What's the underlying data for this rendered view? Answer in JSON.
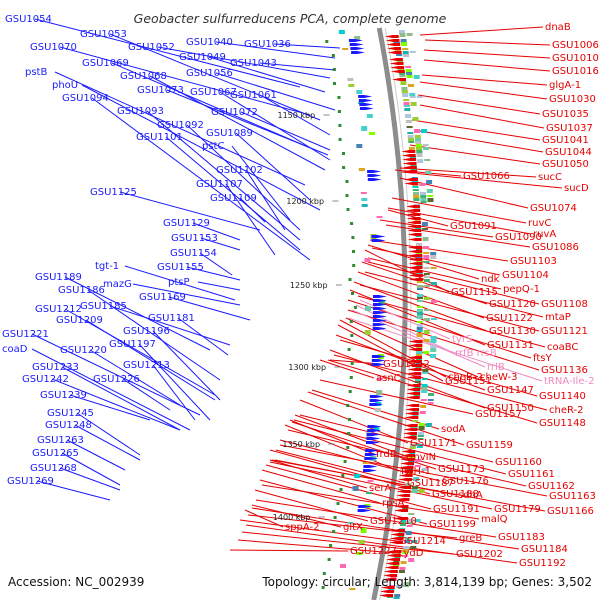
{
  "title": "Geobacter sulfurreducens PCA, complete genome",
  "footer": {
    "accession": "Accession: NC_002939",
    "topology": "Topology: circular; Length: 3,814,139 bp; Genes: 3,502"
  },
  "colors": {
    "forward": "#1a1aff",
    "reverse": "#e60000",
    "rna": "#f08ac0",
    "backbone": "#8c8c8c"
  },
  "scale_labels": [
    "1150 kbp",
    "1200 kbp",
    "1250 kbp",
    "1300 kbp",
    "1350 kbp",
    "1400 kbp"
  ],
  "left_labels": [
    "GSU1054",
    "GSU1053",
    "GSU1052",
    "GSU1040",
    "GSU1036",
    "GSU1070",
    "GSU1049",
    "GSU1043",
    "pstB",
    "GSU1069",
    "GSU1056",
    "phoU",
    "GSU1068",
    "GSU1067",
    "GSU1073",
    "GSU1061",
    "GSU1094",
    "GSU1072",
    "GSU1093",
    "GSU1092",
    "GSU1089",
    "GSU1101",
    "pstC",
    "GSU1102",
    "GSU1107",
    "GSU1125",
    "GSU1109",
    "GSU1129",
    "GSU1153",
    "GSU1154",
    "tgt-1",
    "GSU1155",
    "mazG",
    "GSU1189",
    "ptsP",
    "GSU1186",
    "GSU1169",
    "GSU1185",
    "GSU1212",
    "GSU1181",
    "GSU1209",
    "GSU1196",
    "GSU1221",
    "GSU1197",
    "coaD",
    "GSU1220",
    "GSU1233",
    "GSU1213",
    "GSU1242",
    "GSU1226",
    "GSU1239",
    "GSU1245",
    "GSU1248",
    "GSU1263",
    "GSU1265",
    "GSU1268",
    "GSU1269"
  ],
  "right_labels": [
    "dnaB",
    "GSU1006",
    "GSU1010",
    "GSU1016",
    "glgA-1",
    "GSU1030",
    "GSU1035",
    "GSU1037",
    "GSU1041",
    "GSU1044",
    "GSU1050",
    "GSU1066",
    "sucC",
    "sucD",
    "GSU1074",
    "GSU1091",
    "ruvC",
    "ruvA",
    "GSU1090",
    "GSU1086",
    "GSU1103",
    "ndk",
    "GSU1104",
    "GSU1115",
    "pepQ-1",
    "GSU1120",
    "GSU1108",
    "GSU1122",
    "mtaP",
    "GSU1130",
    "GSU1121",
    "GSU1131",
    "coaBC",
    "ftsY",
    "GSU1152",
    "GSU1136",
    "cheB-2",
    "GSU1151",
    "cheW-3",
    "GSU1147",
    "GSU1140",
    "asnC",
    "GSU1150",
    "cheR-2",
    "GSU1148",
    "GSU1157",
    "sodA",
    "GSU1171",
    "GSU1159",
    "frdB",
    "mvIN",
    "GSU1160",
    "ftsH-1",
    "GSU1173",
    "GSU1161",
    "GSU1176",
    "GSU1162",
    "serA",
    "GSU1187",
    "sdhA",
    "GSU1188",
    "GSU1163",
    "rpsA",
    "GSU1191",
    "GSU1179",
    "GSU1166",
    "GSU1210",
    "GSU1199",
    "malQ",
    "sppA-2",
    "gltX",
    "GSU1183",
    "GSU1214",
    "greB",
    "GSU1184",
    "GSU1227",
    "cydD",
    "GSU1202",
    "GSU1192"
  ],
  "rna_labels": [
    "tyrS",
    "rrfB rrsB",
    "rrlB",
    "tRNA-Ile-2"
  ]
}
